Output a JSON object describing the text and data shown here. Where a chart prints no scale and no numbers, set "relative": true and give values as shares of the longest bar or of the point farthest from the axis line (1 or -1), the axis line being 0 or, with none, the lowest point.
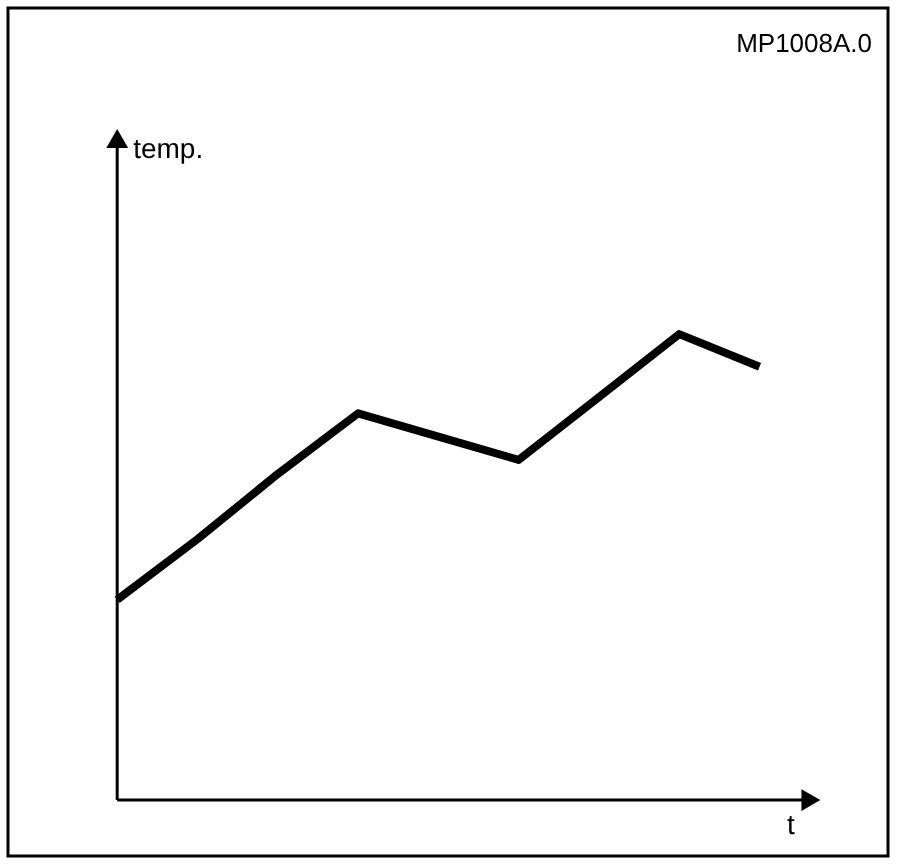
{
  "chart_data": {
    "type": "line",
    "relative": true,
    "xlabel": "t",
    "annotations": [
      "MP1008A.0",
      "temp."
    ],
    "categories": [
      null,
      null,
      null,
      null,
      null,
      null,
      null,
      null,
      null
    ],
    "series": [
      {
        "color": "#000000",
        "values": [
          0.43,
          0.56,
          0.7,
          0.83,
          0.78,
          0.73,
          0.865,
          1.0,
          0.93
        ]
      }
    ],
    "grid": false,
    "marker": "none",
    "line_style": "solid"
  }
}
